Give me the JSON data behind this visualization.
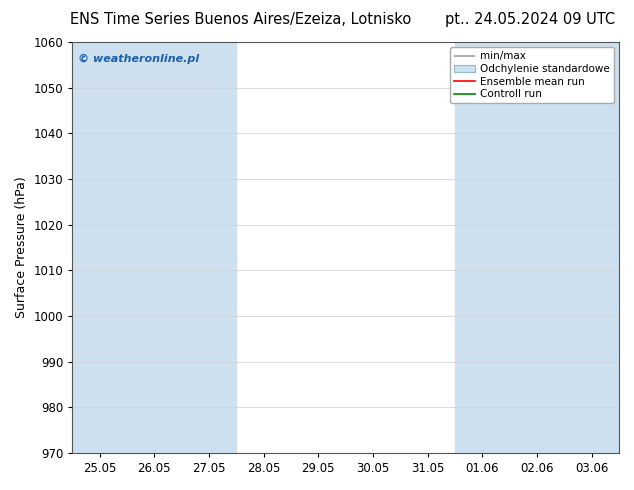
{
  "title_left": "ENS Time Series Buenos Aires/Ezeiza, Lotnisko",
  "title_right": "pt.. 24.05.2024 09 UTC",
  "ylabel": "Surface Pressure (hPa)",
  "ylim": [
    970,
    1060
  ],
  "yticks": [
    970,
    980,
    990,
    1000,
    1010,
    1020,
    1030,
    1040,
    1050,
    1060
  ],
  "x_tick_labels": [
    "25.05",
    "26.05",
    "27.05",
    "28.05",
    "29.05",
    "30.05",
    "31.05",
    "01.06",
    "02.06",
    "03.06"
  ],
  "x_tick_positions": [
    0,
    1,
    2,
    3,
    4,
    5,
    6,
    7,
    8,
    9
  ],
  "band_color": "#cce0f0",
  "bg_color": "#ffffff",
  "watermark": "© weatheronline.pl",
  "watermark_color": "#1a5fa8",
  "title_fontsize": 10.5,
  "axis_fontsize": 9,
  "tick_fontsize": 8.5,
  "legend_fontsize": 7.5,
  "minmax_color": "#a0a0a0",
  "std_color": "#cce0f0",
  "ens_color": "#ff0000",
  "ctrl_color": "#008800"
}
